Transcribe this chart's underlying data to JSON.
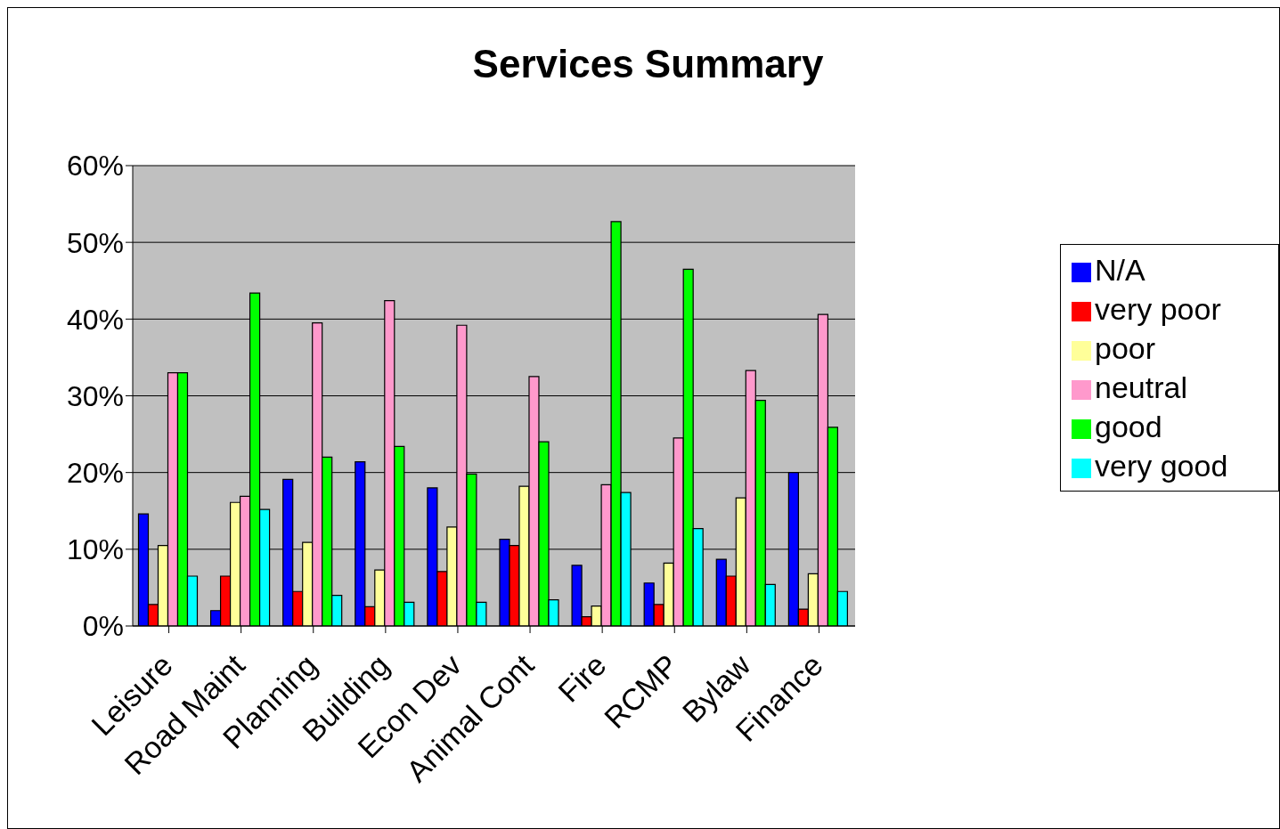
{
  "chart_data": {
    "type": "bar",
    "title": "Services Summary",
    "categories": [
      "Leisure",
      "Road Maint",
      "Planning",
      "Building",
      "Econ Dev",
      "Animal Cont",
      "Fire",
      "RCMP",
      "Bylaw",
      "Finance"
    ],
    "series": [
      {
        "name": "N/A",
        "color": "#0000ff",
        "values": [
          14.6,
          2.0,
          19.1,
          21.4,
          18.0,
          11.3,
          7.9,
          5.6,
          8.7,
          20.0
        ]
      },
      {
        "name": "very poor",
        "color": "#ff0000",
        "values": [
          2.8,
          6.5,
          4.5,
          2.5,
          7.1,
          10.5,
          1.2,
          2.8,
          6.5,
          2.2
        ]
      },
      {
        "name": "poor",
        "color": "#ffff99",
        "values": [
          10.5,
          16.1,
          10.9,
          7.3,
          12.9,
          18.2,
          2.6,
          8.2,
          16.7,
          6.8
        ]
      },
      {
        "name": "neutral",
        "color": "#ff99cc",
        "values": [
          33.0,
          16.9,
          39.5,
          42.4,
          39.2,
          32.5,
          18.4,
          24.5,
          33.3,
          40.6
        ]
      },
      {
        "name": "good",
        "color": "#00ff00",
        "values": [
          33.0,
          43.4,
          22.0,
          23.4,
          19.8,
          24.0,
          52.7,
          46.5,
          29.4,
          25.9
        ]
      },
      {
        "name": "very good",
        "color": "#00ffff",
        "values": [
          6.5,
          15.2,
          4.0,
          3.1,
          3.1,
          3.4,
          17.4,
          12.7,
          5.4,
          4.5
        ]
      }
    ],
    "ylim": [
      0,
      60
    ],
    "yticks": [
      {
        "value": 0,
        "label": "0%"
      },
      {
        "value": 10,
        "label": "10%"
      },
      {
        "value": 20,
        "label": "20%"
      },
      {
        "value": 30,
        "label": "30%"
      },
      {
        "value": 40,
        "label": "40%"
      },
      {
        "value": 50,
        "label": "50%"
      },
      {
        "value": 60,
        "label": "60%"
      }
    ],
    "grid": "y",
    "legend": "right"
  }
}
